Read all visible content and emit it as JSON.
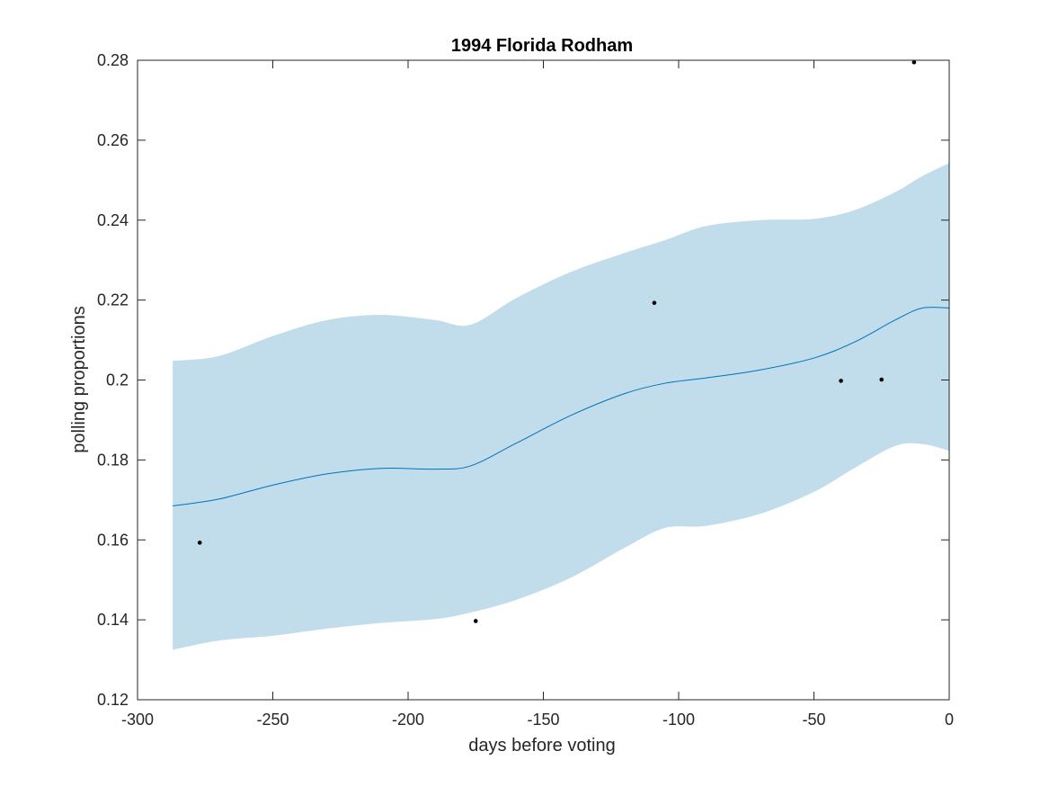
{
  "colors": {
    "band": "#c1dceb",
    "line": "#0072bd",
    "points": "#000000",
    "axis": "#262626"
  },
  "chart_data": {
    "type": "line",
    "title": "1994 Florida Rodham",
    "xlabel": "days before voting",
    "ylabel": "polling proportions",
    "xlim": [
      -300,
      0
    ],
    "ylim": [
      0.12,
      0.28
    ],
    "xticks": [
      -300,
      -250,
      -200,
      -150,
      -100,
      -50,
      0
    ],
    "xtick_labels": [
      "-300",
      "-250",
      "-200",
      "-150",
      "-100",
      "-50",
      "0"
    ],
    "yticks": [
      0.12,
      0.14,
      0.16,
      0.18,
      0.2,
      0.22,
      0.24,
      0.26,
      0.28
    ],
    "ytick_labels": [
      "0.12",
      "0.14",
      "0.16",
      "0.18",
      "0.2",
      "0.22",
      "0.24",
      "0.26",
      "0.28"
    ],
    "series": [
      {
        "name": "fit",
        "x": [
          -287,
          -270,
          -250,
          -230,
          -210,
          -190,
          -177,
          -160,
          -140,
          -120,
          -105,
          -90,
          -70,
          -50,
          -35,
          -20,
          -10,
          0
        ],
        "values": [
          0.1685,
          0.1702,
          0.1737,
          0.1765,
          0.1779,
          0.1777,
          0.1785,
          0.1842,
          0.1911,
          0.1966,
          0.1992,
          0.2005,
          0.2025,
          0.2055,
          0.2095,
          0.215,
          0.218,
          0.218
        ]
      },
      {
        "name": "confidence band",
        "x": [
          -287,
          -270,
          -250,
          -230,
          -210,
          -190,
          -177,
          -160,
          -140,
          -120,
          -105,
          -90,
          -70,
          -50,
          -35,
          -20,
          -10,
          0
        ],
        "upper": [
          0.2048,
          0.206,
          0.211,
          0.215,
          0.2163,
          0.215,
          0.2138,
          0.2205,
          0.227,
          0.2318,
          0.235,
          0.2385,
          0.24,
          0.2403,
          0.2425,
          0.247,
          0.251,
          0.2543
        ],
        "lower": [
          0.1325,
          0.1348,
          0.136,
          0.1378,
          0.1392,
          0.1402,
          0.1418,
          0.145,
          0.1505,
          0.158,
          0.163,
          0.1635,
          0.1665,
          0.172,
          0.178,
          0.1835,
          0.184,
          0.1823
        ]
      },
      {
        "name": "polls",
        "type": "scatter",
        "x": [
          -277,
          -175,
          -109,
          -40,
          -25,
          -13
        ],
        "values": [
          0.1593,
          0.1397,
          0.2193,
          0.1998,
          0.2001,
          0.2795
        ]
      }
    ]
  }
}
